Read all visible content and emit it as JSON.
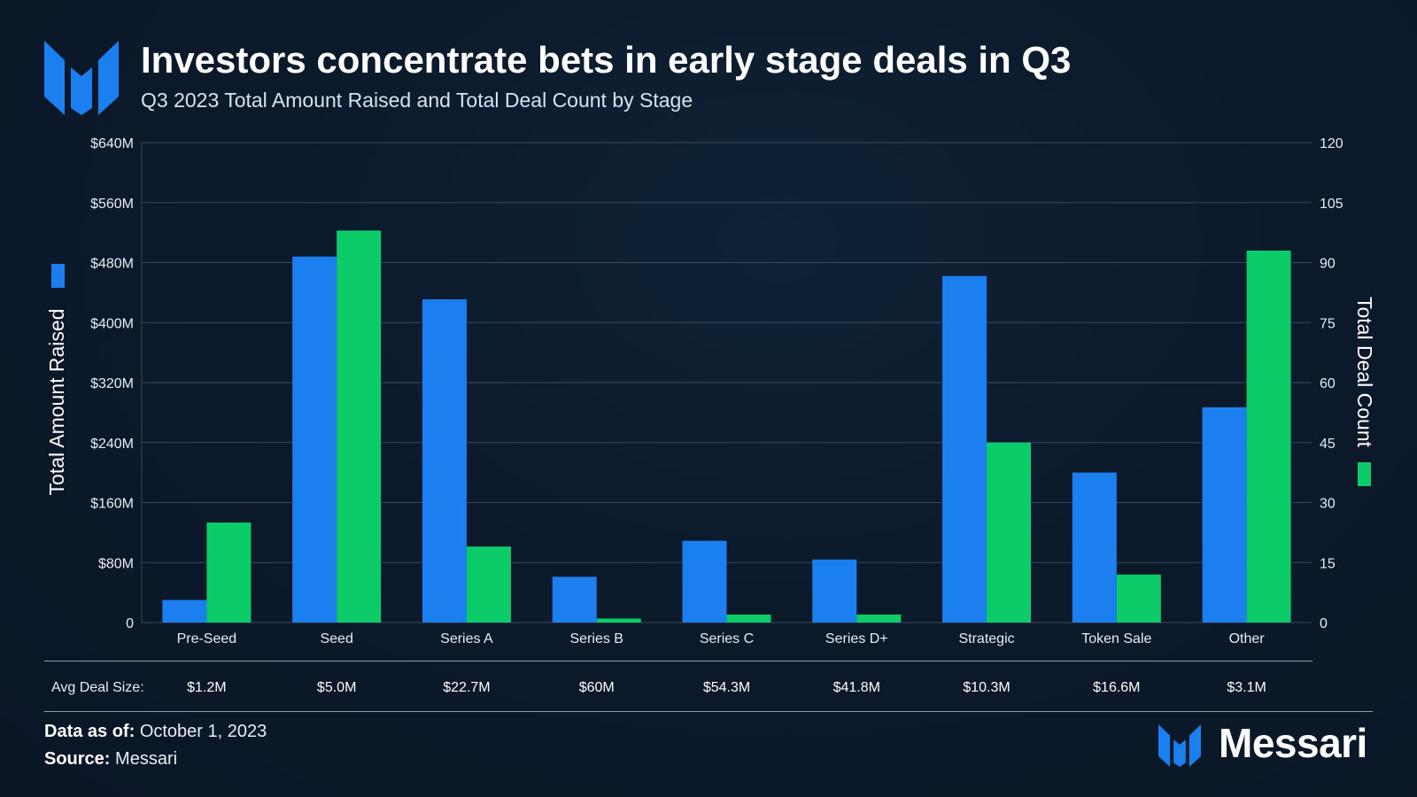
{
  "header": {
    "title": "Investors concentrate bets in early stage deals in Q3",
    "subtitle": "Q3 2023 Total Amount Raised and Total Deal Count by Stage"
  },
  "chart_data": {
    "type": "bar",
    "categories": [
      "Pre-Seed",
      "Seed",
      "Series A",
      "Series B",
      "Series C",
      "Series D+",
      "Strategic",
      "Token Sale",
      "Other"
    ],
    "series": [
      {
        "name": "Total Amount Raised",
        "axis": "left",
        "color": "#1b7ff0",
        "values": [
          30,
          488,
          431,
          61,
          109,
          84,
          462,
          200,
          287
        ]
      },
      {
        "name": "Total Deal Count",
        "axis": "right",
        "color": "#0ccc6a",
        "values": [
          25,
          98,
          19,
          1,
          2,
          2,
          45,
          12,
          93
        ]
      }
    ],
    "ylabel": "Total Amount Raised",
    "y2label": "Total Deal Count",
    "ylim": [
      0,
      640
    ],
    "y2lim": [
      0,
      120
    ],
    "yticks": [
      "0",
      "$80M",
      "$160M",
      "$240M",
      "$320M",
      "$400M",
      "$480M",
      "$560M",
      "$640M"
    ],
    "y2ticks": [
      "0",
      "15",
      "30",
      "45",
      "60",
      "75",
      "90",
      "105",
      "120"
    ],
    "grid": true,
    "avg_deal_size_label": "Avg Deal Size:",
    "avg_deal_size": [
      "$1.2M",
      "$5.0M",
      "$22.7M",
      "$60M",
      "$54.3M",
      "$41.8M",
      "$10.3M",
      "$16.6M",
      "$3.1M"
    ]
  },
  "footer": {
    "date_label": "Data as of:",
    "date_value": "October 1, 2023",
    "source_label": "Source:",
    "source_value": "Messari",
    "brand": "Messari"
  },
  "colors": {
    "background": "#0b1a2b",
    "amount_bar": "#1b7ff0",
    "count_bar": "#0ccc6a",
    "logo_blue": "#1b7ff0"
  },
  "icons": [
    "messari-logo-icon",
    "messari-brand-icon"
  ]
}
